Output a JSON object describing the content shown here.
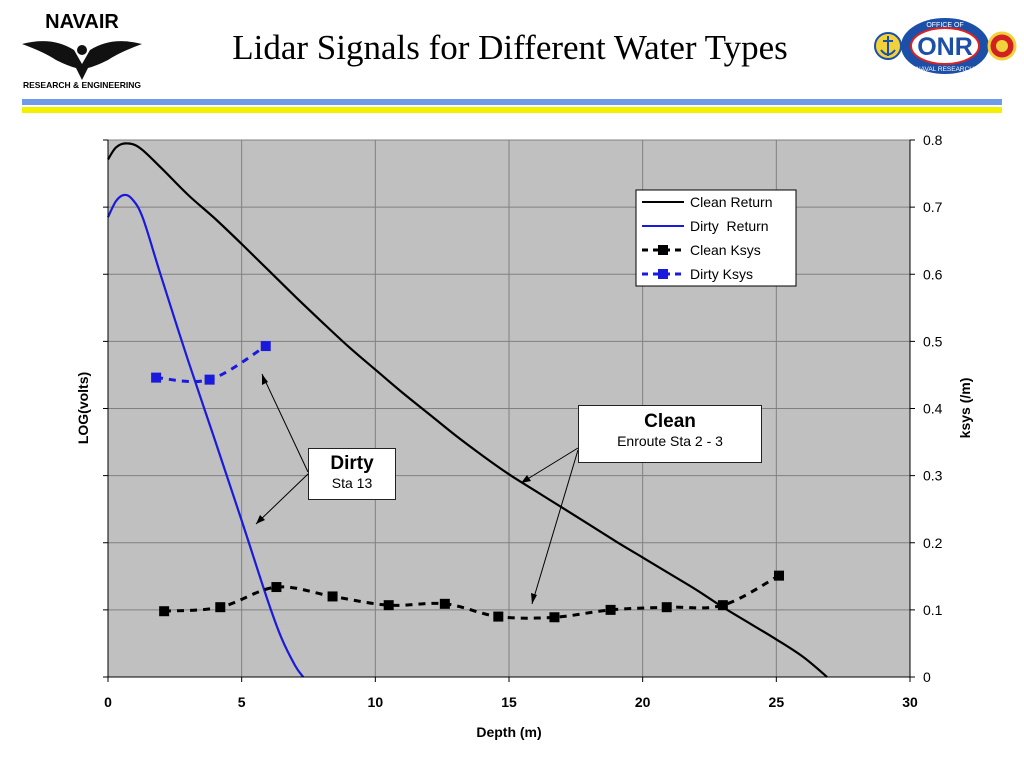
{
  "header": {
    "title": "Lidar Signals for Different Water Types",
    "left_logo": {
      "name": "navair-logo",
      "text": "NAVAIR",
      "subtext": "RESEARCH & ENGINEERING"
    },
    "right_logo": {
      "name": "onr-logo",
      "text": "ONR",
      "ring_top": "OFFICE OF",
      "ring_bottom": "NAVAL RESEARCH"
    }
  },
  "colors": {
    "band_blue": "#6f9be8",
    "band_yellow": "#f3f000",
    "plot_bg": "#c0c0c0",
    "clean": "#000000",
    "dirty": "#1a1adc"
  },
  "chart_data": {
    "type": "line",
    "xlabel": "Depth (m)",
    "ylabel_left": "LOG(volts)",
    "ylabel_right": "ksys (/m)",
    "xlim": [
      0,
      30
    ],
    "ylim_right": [
      0,
      0.8
    ],
    "x_ticks": [
      "0",
      "5",
      "10",
      "15",
      "20",
      "25",
      "30"
    ],
    "y_right_ticks": [
      "0",
      "0.1",
      "0.2",
      "0.3",
      "0.4",
      "0.5",
      "0.6",
      "0.7",
      "0.8"
    ],
    "grid": true,
    "legend_position": "top-right",
    "series": [
      {
        "name": "Clean Return",
        "axis": "left",
        "style": "solid",
        "color": "#000000",
        "x": [
          0,
          0.3,
          0.7,
          1.2,
          2,
          3,
          4,
          5,
          6,
          7,
          8,
          9,
          10,
          11,
          12,
          13,
          14,
          15,
          16,
          17,
          18,
          19,
          20,
          21,
          22,
          23,
          24,
          25,
          26,
          26.9
        ],
        "y": [
          0.771,
          0.789,
          0.795,
          0.788,
          0.758,
          0.718,
          0.683,
          0.645,
          0.606,
          0.567,
          0.529,
          0.492,
          0.458,
          0.424,
          0.392,
          0.36,
          0.33,
          0.302,
          0.277,
          0.252,
          0.227,
          0.202,
          0.178,
          0.154,
          0.13,
          0.104,
          0.08,
          0.056,
          0.03,
          0.0
        ]
      },
      {
        "name": "Dirty  Return",
        "axis": "left",
        "style": "solid",
        "color": "#1a1adc",
        "x": [
          0,
          0.3,
          0.6,
          0.9,
          1.3,
          2,
          3,
          4,
          5,
          6,
          6.5,
          7,
          7.3
        ],
        "y": [
          0.685,
          0.709,
          0.718,
          0.712,
          0.684,
          0.595,
          0.471,
          0.353,
          0.233,
          0.111,
          0.057,
          0.017,
          0.0
        ]
      },
      {
        "name": "Clean Ksys",
        "axis": "right",
        "style": "dashed-markers",
        "color": "#000000",
        "x": [
          2.1,
          4.2,
          6.3,
          8.4,
          10.5,
          12.6,
          14.6,
          16.7,
          18.8,
          20.9,
          23.0,
          25.1
        ],
        "y": [
          0.098,
          0.104,
          0.134,
          0.12,
          0.107,
          0.109,
          0.09,
          0.089,
          0.1,
          0.104,
          0.107,
          0.151
        ]
      },
      {
        "name": "Dirty Ksys",
        "axis": "right",
        "style": "dashed-markers",
        "color": "#1a1adc",
        "x": [
          1.8,
          3.8,
          5.9
        ],
        "y": [
          0.446,
          0.443,
          0.493
        ]
      }
    ],
    "annotations": [
      {
        "title": "Dirty",
        "subtitle": "Sta 13",
        "points_to": [
          "Dirty Ksys",
          "Dirty  Return"
        ]
      },
      {
        "title": "Clean",
        "subtitle": "Enroute Sta 2 - 3",
        "points_to": [
          "Clean Return",
          "Clean Ksys"
        ]
      }
    ]
  }
}
